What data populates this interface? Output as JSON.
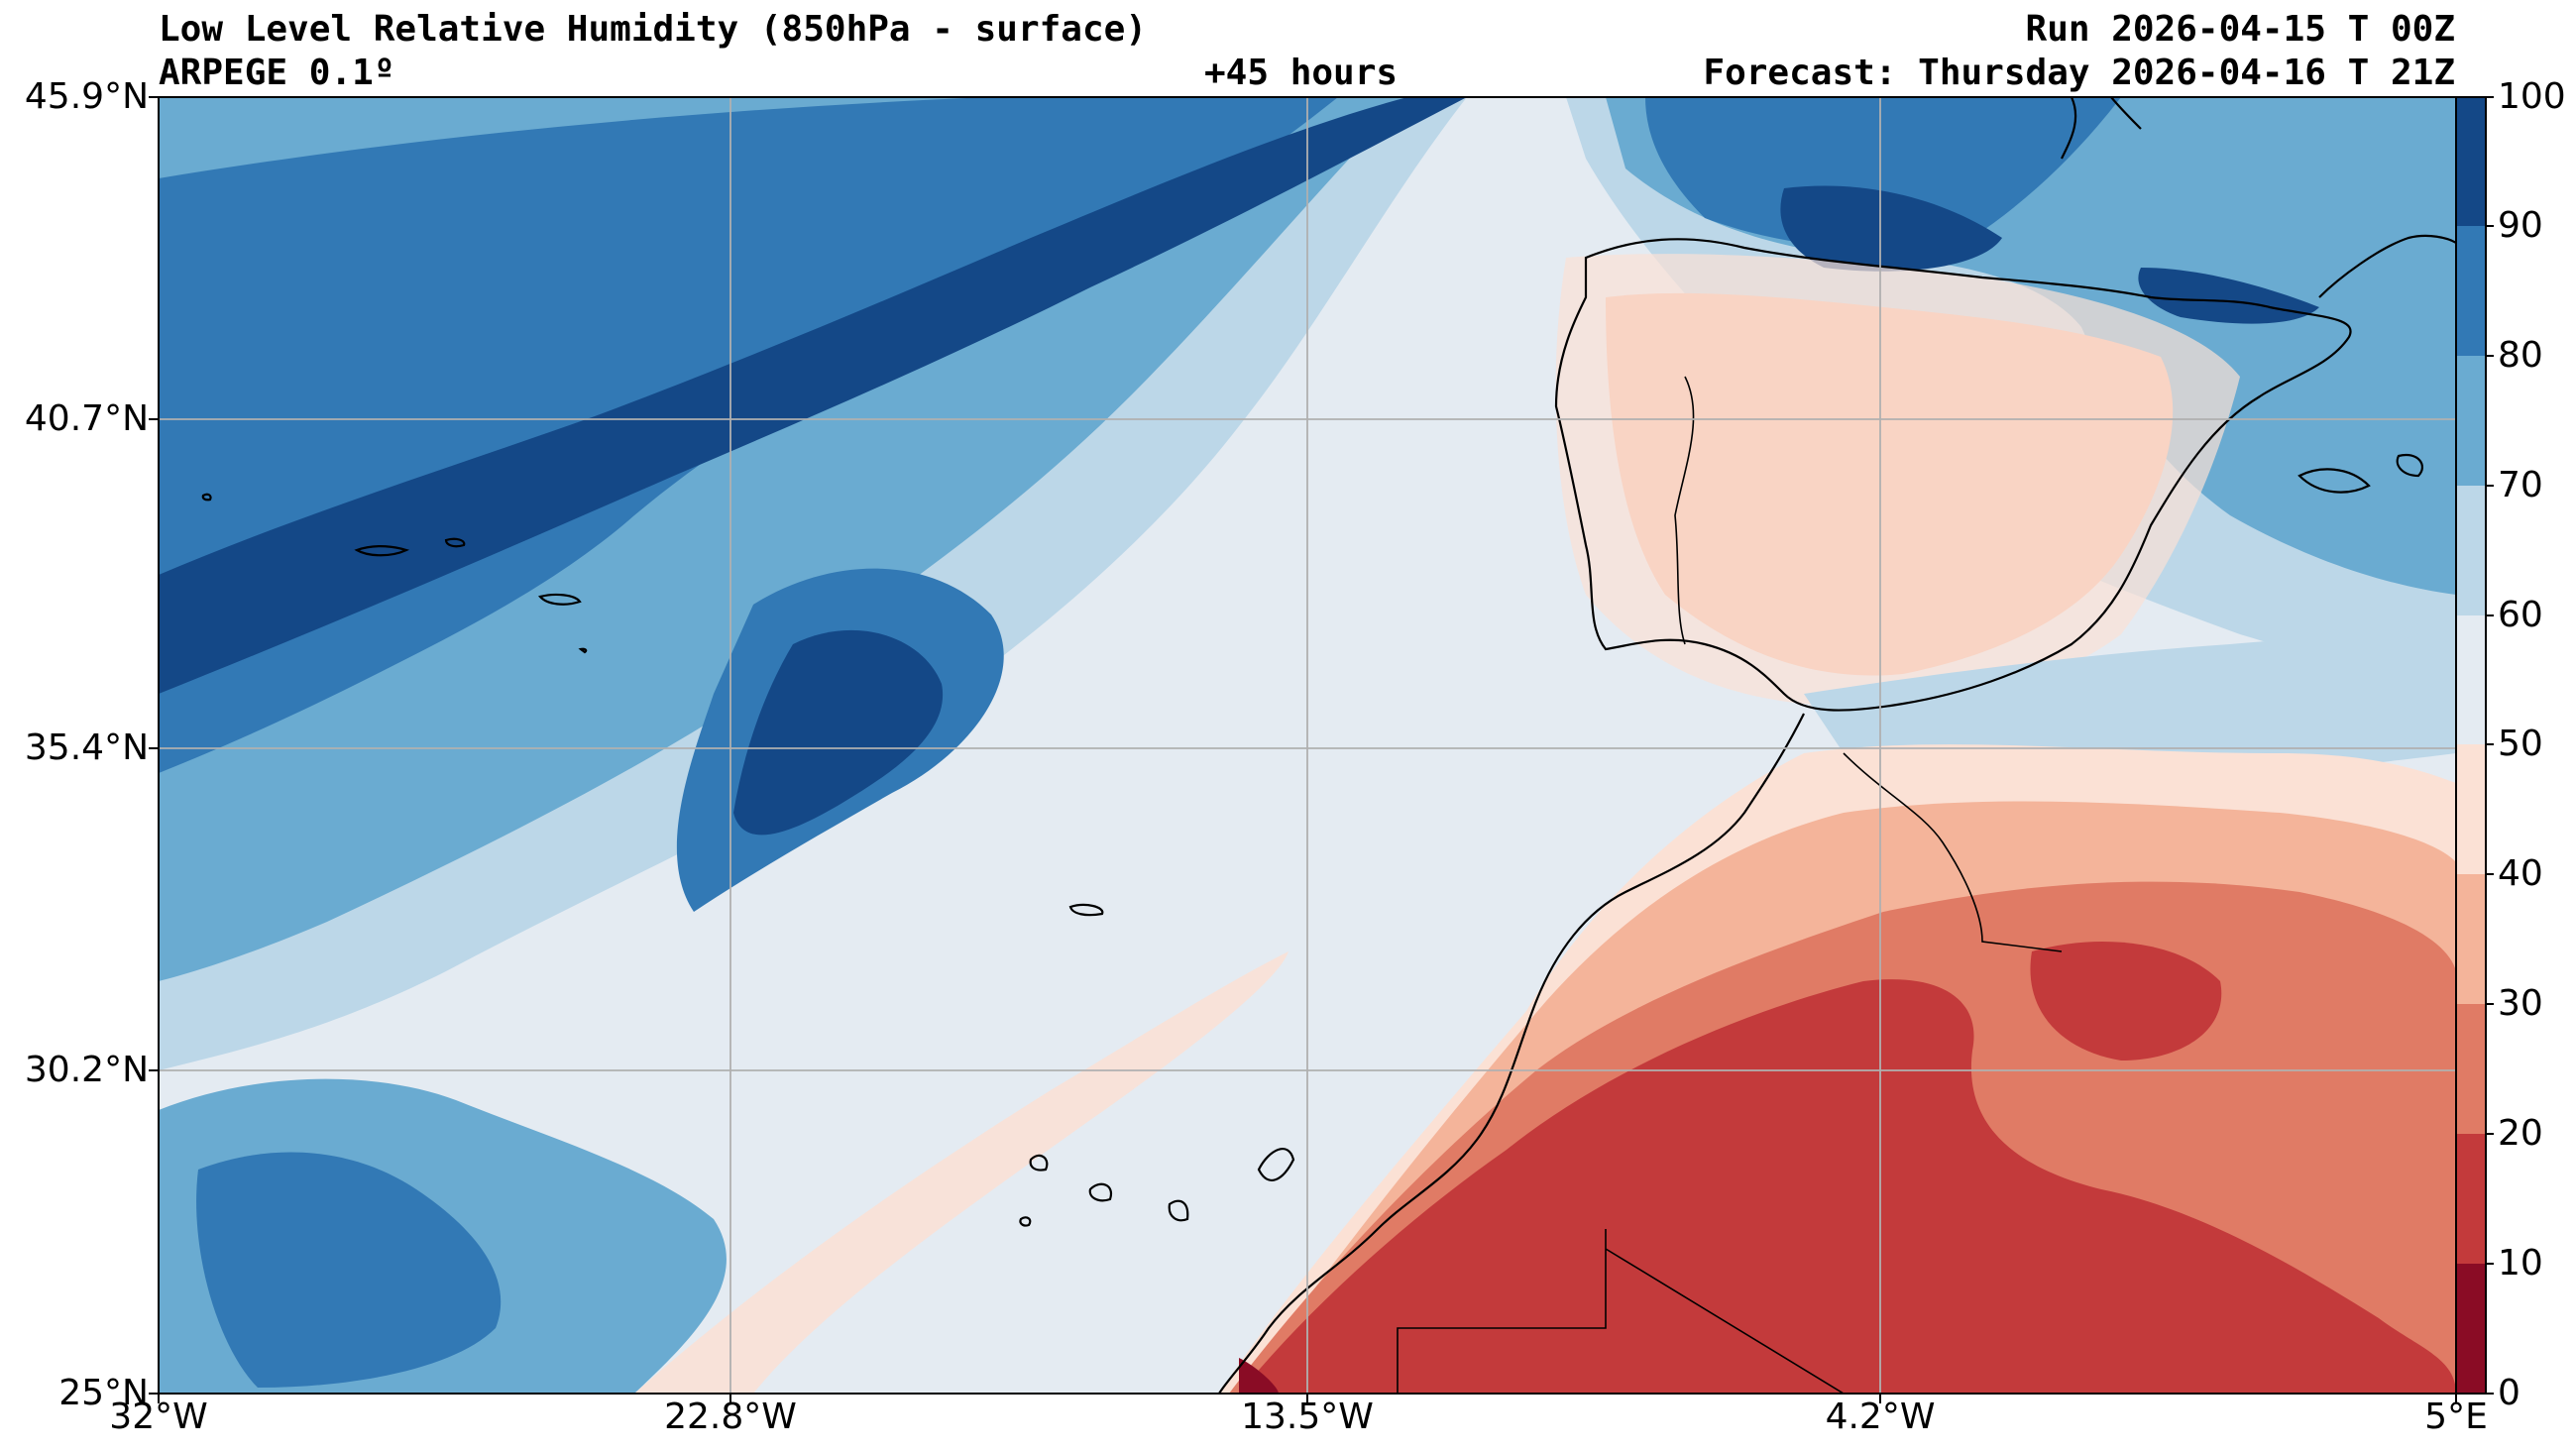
{
  "header": {
    "title": "Low Level Relative Humidity (850hPa - surface)",
    "model": "ARPEGE 0.1º",
    "lead_time": "+45 hours",
    "run": "Run 2026-04-15 T 00Z",
    "forecast": "Forecast: Thursday 2026-04-16 T 21Z"
  },
  "map": {
    "extent_lon": [
      -32,
      5
    ],
    "extent_lat": [
      25,
      45.9
    ],
    "lat_ticks": [
      {
        "value": 45.9,
        "label": "45.9°N"
      },
      {
        "value": 40.7,
        "label": "40.7°N"
      },
      {
        "value": 35.4,
        "label": "35.4°N"
      },
      {
        "value": 30.2,
        "label": "30.2°N"
      },
      {
        "value": 25,
        "label": "25°N"
      }
    ],
    "lon_ticks": [
      {
        "value": -32,
        "label": "32°W"
      },
      {
        "value": -22.8,
        "label": "22.8°W"
      },
      {
        "value": -13.5,
        "label": "13.5°W"
      },
      {
        "value": -4.2,
        "label": "4.2°W"
      },
      {
        "value": 5,
        "label": "5°E"
      }
    ]
  },
  "colorbar": {
    "unit": "%",
    "levels": [
      0,
      10,
      20,
      30,
      40,
      50,
      60,
      70,
      80,
      90,
      100
    ],
    "labels": [
      "0",
      "10",
      "20",
      "30",
      "40",
      "50",
      "60",
      "70",
      "80",
      "90",
      "100"
    ],
    "colors": [
      "#8a0c25",
      "#c33a3b",
      "#e07b65",
      "#f4b49a",
      "#fbe1d5",
      "#e4ebf2",
      "#bcd7e8",
      "#6aabd1",
      "#3279b5",
      "#144887"
    ]
  },
  "colors": {
    "ocean_moist": "#144887",
    "coast": "#000000",
    "grid": "#b0b0b0"
  }
}
